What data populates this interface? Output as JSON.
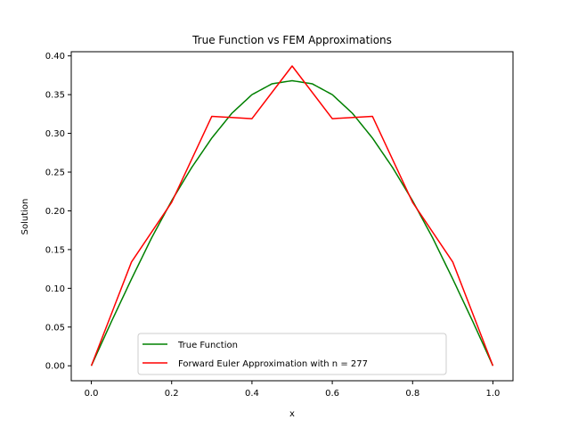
{
  "chart_data": {
    "type": "line",
    "title": "True Function vs FEM Approximations",
    "xlabel": "x",
    "ylabel": "Solution",
    "xlim": [
      -0.05,
      1.05
    ],
    "ylim": [
      -0.0193,
      0.4054
    ],
    "xticks": [
      0.0,
      0.2,
      0.4,
      0.6,
      0.8,
      1.0
    ],
    "xtick_labels": [
      "0.0",
      "0.2",
      "0.4",
      "0.6",
      "0.8",
      "1.0"
    ],
    "yticks": [
      0.0,
      0.05,
      0.1,
      0.15,
      0.2,
      0.25,
      0.3,
      0.35,
      0.4
    ],
    "ytick_labels": [
      "0.00",
      "0.05",
      "0.10",
      "0.15",
      "0.20",
      "0.25",
      "0.30",
      "0.35",
      "0.40"
    ],
    "grid": false,
    "legend_position": "bottom-center",
    "series": [
      {
        "name": "True Function",
        "color": "#008000",
        "expression": "x*(1-x)*exp(x)... sampled",
        "x": [
          0.0,
          0.05,
          0.1,
          0.15,
          0.2,
          0.25,
          0.3,
          0.35,
          0.4,
          0.45,
          0.5,
          0.55,
          0.6,
          0.65,
          0.7,
          0.75,
          0.8,
          0.85,
          0.9,
          0.95,
          1.0
        ],
        "y": [
          0.0,
          0.057,
          0.112,
          0.165,
          0.213,
          0.256,
          0.294,
          0.326,
          0.35,
          0.364,
          0.368,
          0.364,
          0.35,
          0.326,
          0.294,
          0.256,
          0.213,
          0.165,
          0.112,
          0.057,
          0.0
        ]
      },
      {
        "name": "Forward Euler Approximation with n = 277",
        "color": "#ff0000",
        "x": [
          0.0,
          0.1,
          0.2,
          0.3,
          0.4,
          0.5,
          0.6,
          0.7,
          0.8,
          0.9,
          1.0
        ],
        "y": [
          0.0,
          0.134,
          0.211,
          0.322,
          0.319,
          0.387,
          0.319,
          0.322,
          0.211,
          0.134,
          0.0
        ]
      }
    ]
  }
}
